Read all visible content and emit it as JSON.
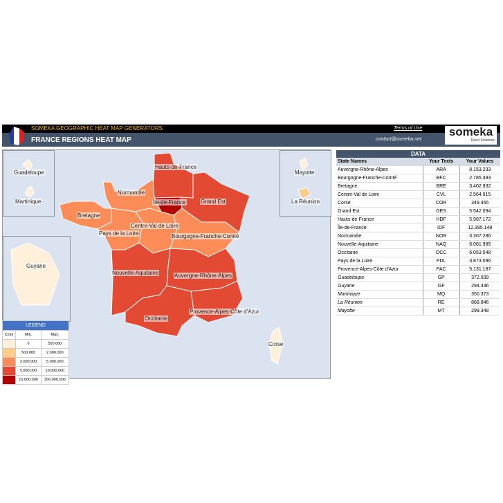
{
  "header": {
    "subtitle": "SOMEKA GEOGRAPHIC HEAT MAP GENERATORS",
    "title": "FRANCE REGIONS HEAT MAP",
    "terms": "Terms of Use",
    "contact": "contact@someka.net",
    "logo": "someka",
    "logo_tag": "Excel Solutions"
  },
  "colors": {
    "c1": "#fff0dc",
    "c2": "#fdcc8a",
    "c3": "#fc8d59",
    "c4": "#e34a33",
    "c5": "#b30000",
    "map_bg": "#dbe2f0"
  },
  "map": {
    "labels": {
      "HDF": "Hauts-de-France",
      "IDF": "Île-de-France",
      "GES": "Grand Est",
      "NOR": "Normandie",
      "BRE": "Bretagne",
      "PDL": "Pays de la Loire",
      "CVL": "Centre-Val de Loire",
      "BFC": "Bourgogne-Franche-Comté",
      "NAQ": "Nouvelle-Aquitaine",
      "ARA": "Auvergne-Rhône-Alpes",
      "OCC": "Occitanie",
      "PAC": "Provence-Alpes-Côte d'Azur",
      "COR": "Corse",
      "GP": "Guadeloupe",
      "MQ": "Martinique",
      "GF": "Guyane",
      "MT": "Mayotte",
      "RE": "La Réunion"
    }
  },
  "legend": {
    "title": "LEGEND",
    "headers": [
      "Color",
      "Min.",
      "Max."
    ],
    "rows": [
      {
        "min": "0",
        "max": "500.000"
      },
      {
        "min": "500.000",
        "max": "2.000.000"
      },
      {
        "min": "2.000.000",
        "max": "5.000.000"
      },
      {
        "min": "5.000.000",
        "max": "10.000.000"
      },
      {
        "min": "10.000.000",
        "max": "300.000.000"
      }
    ]
  },
  "data": {
    "title": "DATA",
    "headers": [
      "State Names",
      "Your Texts",
      "Your Values"
    ],
    "rows": [
      [
        "Auvergne-Rhône-Alpes",
        "ARA",
        "8.153.233"
      ],
      [
        "Bourgogne-Franche-Comté",
        "BFC",
        "2.785.393"
      ],
      [
        "Bretagne",
        "BRE",
        "3.402.932"
      ],
      [
        "Centre-Val de Loire",
        "CVL",
        "2.564.915"
      ],
      [
        "Corse",
        "COR",
        "349.465"
      ],
      [
        "Grand Est",
        "GES",
        "5.542.094"
      ],
      [
        "Hauts-de-France",
        "HDF",
        "5.987.172"
      ],
      [
        "Île-de-France",
        "IDF",
        "12.395.148"
      ],
      [
        "Normandie",
        "NOR",
        "3.307.286"
      ],
      [
        "Nouvelle-Aquitaine",
        "NAQ",
        "6.081.985"
      ],
      [
        "Occitanie",
        "OCC",
        "6.053.548"
      ],
      [
        "Pays de la Loire",
        "PDL",
        "3.873.096"
      ],
      [
        "Provence-Alpes-Côte d'Azur",
        "PAC",
        "5.131.187"
      ],
      [
        "Guadeloupe",
        "GP",
        "372.939"
      ],
      [
        "Guyane",
        "GF",
        "294.436"
      ],
      [
        "Martinique",
        "MQ",
        "350.373"
      ],
      [
        "La Réunion",
        "RE",
        "868.846"
      ],
      [
        "Mayotte",
        "MT",
        "299.348"
      ]
    ]
  }
}
